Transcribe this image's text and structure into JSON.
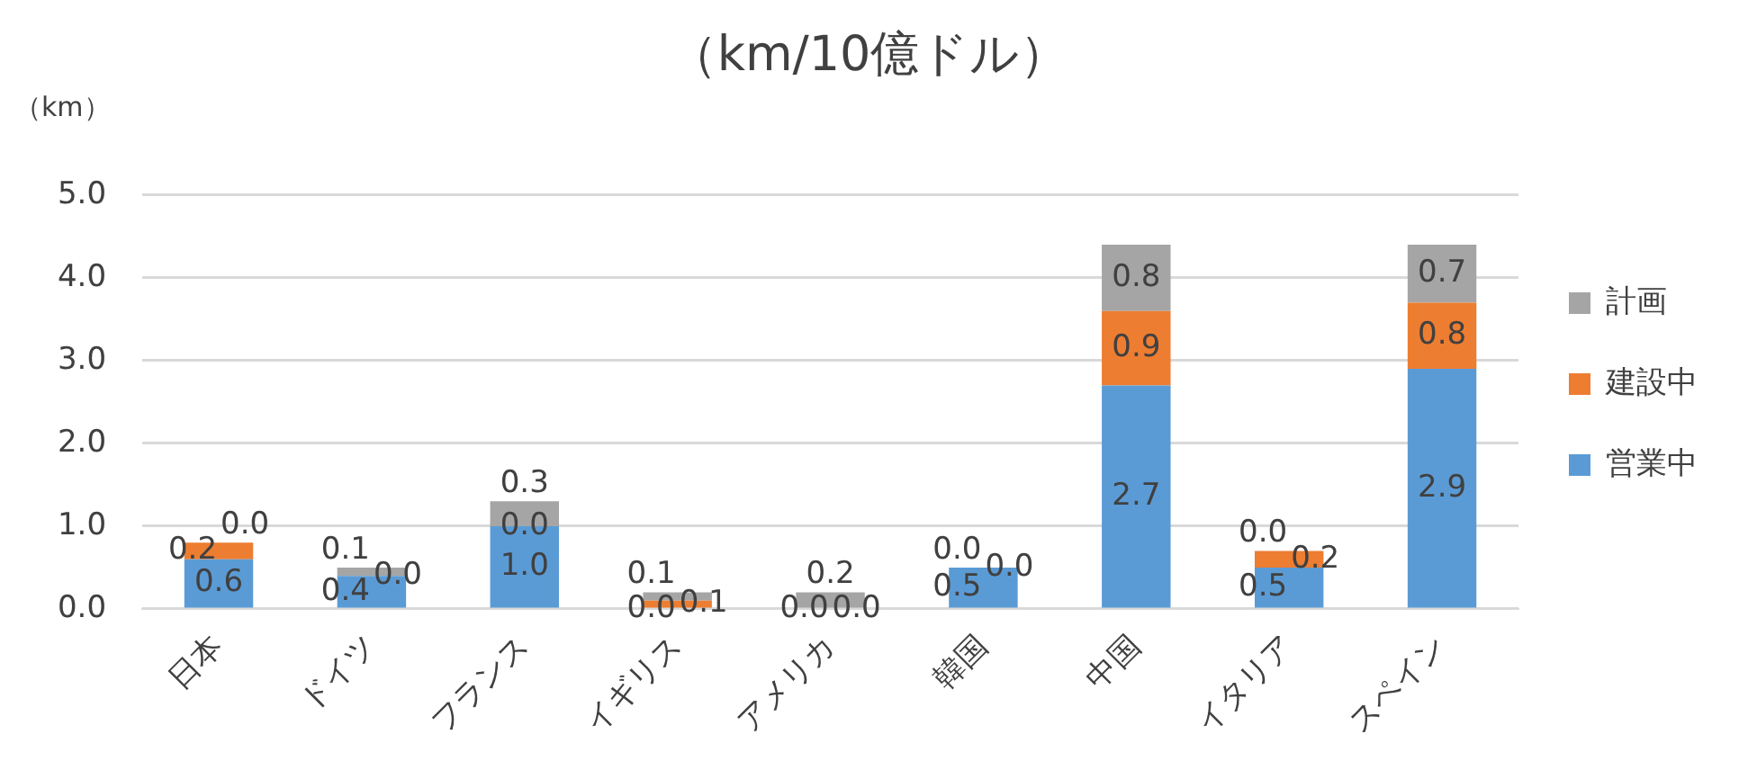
{
  "chart_data": {
    "type": "bar",
    "title": "（km/10億ドル）",
    "ylabel": "（km）",
    "stacked": true,
    "categories": [
      "日本",
      "ドイツ",
      "フランス",
      "イギリス",
      "アメリカ",
      "韓国",
      "中国",
      "イタリア",
      "スペイン"
    ],
    "series": [
      {
        "name": "営業中",
        "color": "#5b9bd5",
        "values": [
          0.6,
          0.4,
          1.0,
          0.0,
          0.0,
          0.5,
          2.7,
          0.5,
          2.9
        ],
        "value_labels": [
          "0.6",
          "0.4",
          "1.0",
          "0.0",
          "0.0",
          "0.5",
          "2.7",
          "0.5",
          "2.9"
        ]
      },
      {
        "name": "建設中",
        "color": "#ed7d31",
        "values": [
          0.2,
          0.0,
          0.0,
          0.1,
          0.0,
          0.0,
          0.9,
          0.2,
          0.8
        ],
        "value_labels": [
          "0.2",
          "0.0",
          "0.0",
          "0.1",
          "0.0",
          "0.0",
          "0.9",
          "0.2",
          "0.8"
        ]
      },
      {
        "name": "計画",
        "color": "#a5a5a5",
        "values": [
          0.0,
          0.1,
          0.3,
          0.1,
          0.2,
          0.0,
          0.8,
          0.0,
          0.7
        ],
        "value_labels": [
          "0.0",
          "0.1",
          "0.3",
          "0.1",
          "0.2",
          "0.0",
          "0.8",
          "0.0",
          "0.7"
        ]
      }
    ],
    "ylim": [
      0,
      5
    ],
    "yticks": [
      {
        "value": 0,
        "label": "0.0"
      },
      {
        "value": 1,
        "label": "1.0"
      },
      {
        "value": 2,
        "label": "2.0"
      },
      {
        "value": 3,
        "label": "3.0"
      },
      {
        "value": 4,
        "label": "4.0"
      },
      {
        "value": 5,
        "label": "5.0"
      }
    ],
    "grid": "y",
    "legend": "right",
    "data_labels": true
  }
}
